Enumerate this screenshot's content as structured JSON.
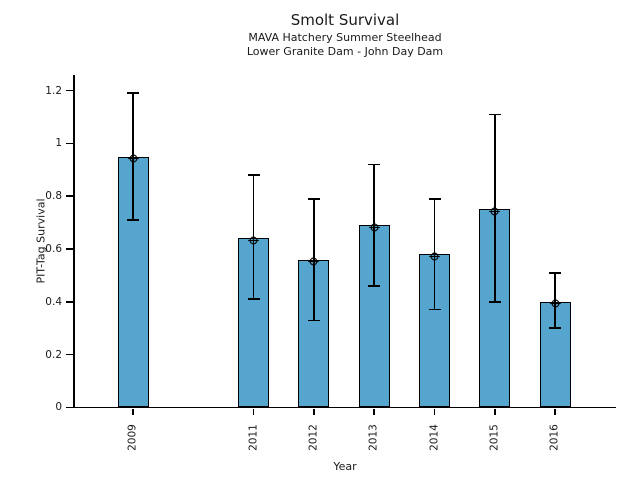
{
  "figure": {
    "title": "Smolt Survival",
    "subtitle_line1": "MAVA Hatchery Summer Steelhead",
    "subtitle_line2": "Lower Granite Dam - John Day Dam"
  },
  "chart_data": {
    "type": "bar",
    "title": "Smolt Survival",
    "subtitle": [
      "MAVA Hatchery Summer Steelhead",
      "Lower Granite Dam - John Day Dam"
    ],
    "xlabel": "Year",
    "ylabel": "PIT-Tag Survival",
    "categories": [
      2009,
      2011,
      2012,
      2013,
      2014,
      2015,
      2016
    ],
    "values": [
      0.95,
      0.64,
      0.56,
      0.69,
      0.58,
      0.75,
      0.4
    ],
    "error_low": [
      0.71,
      0.41,
      0.33,
      0.46,
      0.37,
      0.4,
      0.3
    ],
    "error_high": [
      1.19,
      0.88,
      0.79,
      0.92,
      0.79,
      1.11,
      0.51
    ],
    "y_ticks": [
      {
        "value": 0,
        "label": "0"
      },
      {
        "value": 0.2,
        "label": "0.2"
      },
      {
        "value": 0.4,
        "label": "0.4"
      },
      {
        "value": 0.6,
        "label": "0.6"
      },
      {
        "value": 0.8,
        "label": "0.8"
      },
      {
        "value": 1,
        "label": "1"
      },
      {
        "value": 1.2,
        "label": "1.2"
      }
    ],
    "ylim": [
      0,
      1.26
    ],
    "xlim": [
      2008,
      2017
    ],
    "x_tick_rotation": 90,
    "missing_years": [
      2010
    ],
    "grid": false,
    "legend": null,
    "bar_color": "#56a5cf",
    "bar_edge_color": "#000000",
    "error_color": "#000000",
    "marker": "circle-plus"
  }
}
